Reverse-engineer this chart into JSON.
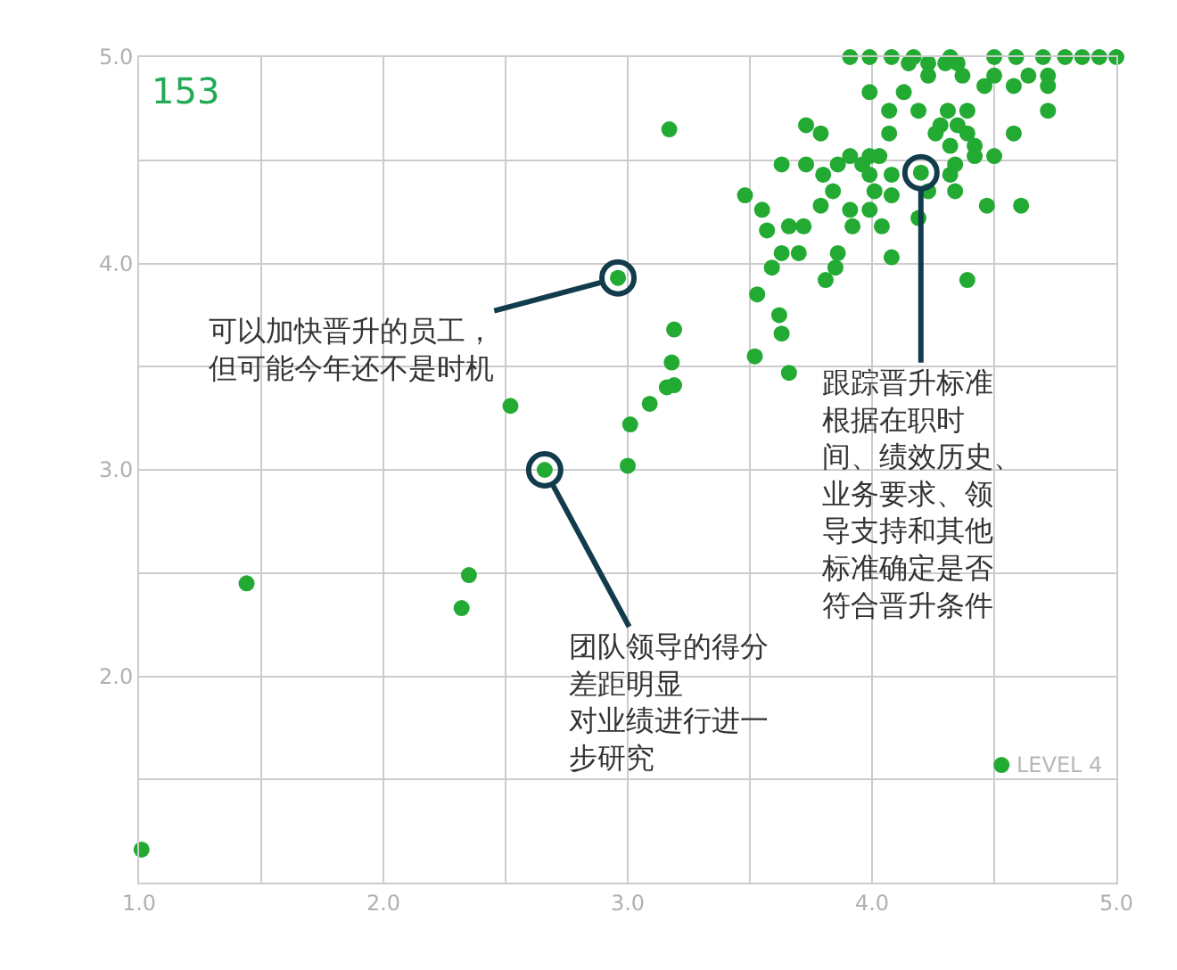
{
  "chart_data": {
    "type": "scatter",
    "xlim": [
      1,
      5
    ],
    "ylim": [
      1,
      5
    ],
    "xticks": [
      {
        "value": 1,
        "label": "1.0"
      },
      {
        "value": 1.5,
        "label": null
      },
      {
        "value": 2,
        "label": "2.0"
      },
      {
        "value": 2.5,
        "label": null
      },
      {
        "value": 3,
        "label": "3.0"
      },
      {
        "value": 3.5,
        "label": null
      },
      {
        "value": 4,
        "label": "4.0"
      },
      {
        "value": 4.5,
        "label": null
      },
      {
        "value": 5,
        "label": "5.0"
      }
    ],
    "yticks": [
      {
        "value": 1,
        "label": null
      },
      {
        "value": 1.5,
        "label": null
      },
      {
        "value": 2,
        "label": "2.0"
      },
      {
        "value": 2.5,
        "label": null
      },
      {
        "value": 3,
        "label": "3.0"
      },
      {
        "value": 3.5,
        "label": null
      },
      {
        "value": 4,
        "label": "4.0"
      },
      {
        "value": 4.5,
        "label": null
      },
      {
        "value": 5,
        "label": "5.0"
      }
    ],
    "grid": true,
    "marker": "circle",
    "series": [
      {
        "color": "#22aa33",
        "x": [
          1.01,
          1.44,
          2.32,
          2.35,
          2.52,
          2.96,
          2.66,
          3.0,
          3.01,
          3.09,
          3.16,
          3.19,
          3.18,
          3.19,
          3.17,
          4.53,
          4.2,
          3.91,
          3.99,
          4.08,
          4.17,
          4.32,
          4.5,
          4.59,
          4.7,
          4.79,
          4.86,
          4.93,
          5.0,
          4.15,
          4.23,
          4.3,
          4.35,
          4.23,
          4.37,
          4.5,
          4.64,
          4.72,
          4.46,
          4.58,
          4.72,
          3.99,
          4.13,
          4.07,
          4.19,
          4.31,
          4.39,
          4.72,
          3.73,
          4.28,
          4.35,
          3.79,
          4.07,
          4.26,
          4.39,
          4.58,
          4.32,
          4.42,
          3.91,
          3.99,
          4.03,
          4.42,
          4.5,
          3.63,
          3.73,
          3.86,
          3.96,
          4.34,
          3.8,
          3.99,
          4.08,
          4.32,
          3.84,
          4.01,
          4.23,
          4.34,
          3.48,
          4.08,
          3.79,
          4.47,
          4.61,
          3.55,
          3.91,
          3.99,
          4.19,
          3.66,
          3.72,
          3.92,
          4.04,
          3.57,
          3.63,
          3.7,
          3.86,
          4.08,
          3.59,
          3.85,
          3.81,
          4.39,
          3.53,
          3.62,
          3.63,
          3.52,
          3.66
        ],
        "values": [
          1.16,
          2.45,
          2.33,
          2.49,
          3.31,
          3.93,
          3.0,
          3.02,
          3.22,
          3.32,
          3.4,
          3.41,
          3.52,
          3.68,
          4.65,
          1.57,
          4.44,
          5.0,
          5.0,
          5.0,
          5.0,
          5.0,
          5.0,
          5.0,
          5.0,
          5.0,
          5.0,
          5.0,
          5.0,
          4.97,
          4.97,
          4.97,
          4.97,
          4.91,
          4.91,
          4.91,
          4.91,
          4.91,
          4.86,
          4.86,
          4.86,
          4.83,
          4.83,
          4.74,
          4.74,
          4.74,
          4.74,
          4.74,
          4.67,
          4.67,
          4.67,
          4.63,
          4.63,
          4.63,
          4.63,
          4.63,
          4.57,
          4.57,
          4.52,
          4.52,
          4.52,
          4.52,
          4.52,
          4.48,
          4.48,
          4.48,
          4.48,
          4.48,
          4.43,
          4.43,
          4.43,
          4.43,
          4.35,
          4.35,
          4.35,
          4.35,
          4.33,
          4.33,
          4.28,
          4.28,
          4.28,
          4.26,
          4.26,
          4.26,
          4.22,
          4.18,
          4.18,
          4.18,
          4.18,
          4.16,
          4.05,
          4.05,
          4.05,
          4.03,
          3.98,
          3.98,
          3.92,
          3.92,
          3.85,
          3.75,
          3.66,
          3.55,
          3.47
        ]
      }
    ],
    "annotations": [
      "153",
      {
        "text": "可以加快晋升的员工，但可能今年还不是时机",
        "x": 2.96,
        "y": 3.93
      },
      {
        "text": "团队领导的得分差距明显对业绩进行进一步研究",
        "x": 2.66,
        "y": 3.0
      },
      {
        "text": "跟踪晋升标准根据在职时间、绩效历史、业务要求、领导支持和其他标准确定是否符合晋升条件",
        "x": 4.2,
        "y": 4.44
      },
      {
        "text": "LEVEL 4",
        "x": 4.53,
        "y": 1.57
      }
    ]
  }
}
